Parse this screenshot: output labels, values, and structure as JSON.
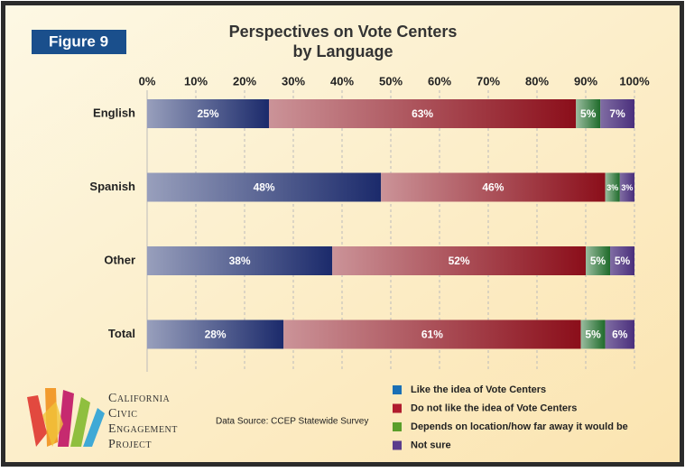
{
  "chart_data": {
    "type": "stacked-bar-horizontal",
    "figure_label": "Figure 9",
    "title": [
      "Perspectives on Vote Centers",
      "by Language"
    ],
    "categories": [
      "English",
      "Spanish",
      "Other",
      "Total"
    ],
    "series": [
      {
        "name": "Like the idea of Vote Centers",
        "color": "#1b2a6b",
        "legend_color": "#1a6fb5",
        "values": [
          25,
          48,
          38,
          28
        ],
        "value_labels": [
          "25%",
          "48%",
          "38%",
          "28%"
        ]
      },
      {
        "name": "Do not like the idea of Vote Centers",
        "color": "#8b0e1a",
        "legend_color": "#b01c2e",
        "values": [
          63,
          46,
          52,
          61
        ],
        "value_labels": [
          "63%",
          "46%",
          "52%",
          "61%"
        ]
      },
      {
        "name": "Depends on location/how far away it would be",
        "color": "#1e6b2a",
        "legend_color": "#5a9e2a",
        "values": [
          5,
          3,
          5,
          5
        ],
        "value_labels": [
          "5%",
          "3%",
          "5%",
          "5%"
        ]
      },
      {
        "name": "Not sure",
        "color": "#4a2f7c",
        "legend_color": "#5a3c8c",
        "values": [
          7,
          3,
          5,
          6
        ],
        "value_labels": [
          "7%",
          "3%",
          "5%",
          "6%"
        ]
      }
    ],
    "xlim": [
      0,
      100
    ],
    "xticks": [
      {
        "value": 0,
        "label": "0%"
      },
      {
        "value": 10,
        "label": "10%"
      },
      {
        "value": 20,
        "label": "20%"
      },
      {
        "value": 30,
        "label": "30%"
      },
      {
        "value": 40,
        "label": "40%"
      },
      {
        "value": 50,
        "label": "50%"
      },
      {
        "value": 60,
        "label": "60%"
      },
      {
        "value": 70,
        "label": "70%"
      },
      {
        "value": 80,
        "label": "80%"
      },
      {
        "value": 90,
        "label": "90%"
      },
      {
        "value": 100,
        "label": "100%"
      }
    ],
    "grid": true,
    "source": "Data Source: CCEP Statewide Survey",
    "logo_lines": [
      "California",
      "Civic",
      "Engagement",
      "Project"
    ]
  }
}
